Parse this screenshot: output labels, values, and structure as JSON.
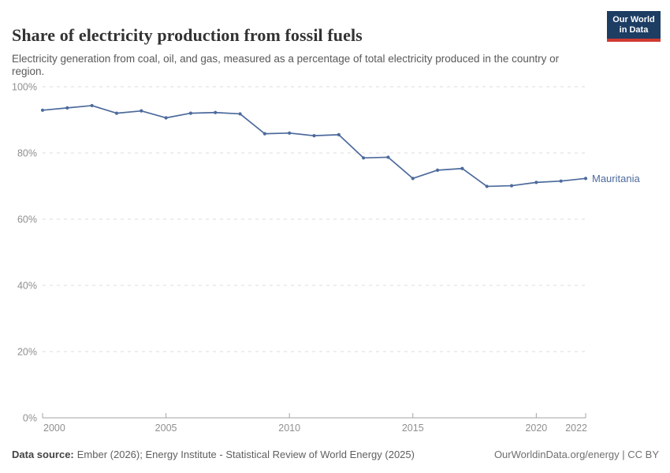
{
  "header": {
    "title": "Share of electricity production from fossil fuels",
    "subtitle": "Electricity generation from coal, oil, and gas, measured as a percentage of total electricity produced in the country or region.",
    "logo": {
      "line1": "Our World",
      "line2": "in Data"
    }
  },
  "chart_data": {
    "type": "line",
    "title": "Share of electricity production from fossil fuels",
    "xlabel": "",
    "ylabel": "",
    "xlim": [
      2000,
      2022
    ],
    "ylim": [
      0,
      100
    ],
    "grid": "horizontal-dashed",
    "legend_position": "end-of-line-label",
    "x": [
      2000,
      2001,
      2002,
      2003,
      2004,
      2005,
      2006,
      2007,
      2008,
      2009,
      2010,
      2011,
      2012,
      2013,
      2014,
      2015,
      2016,
      2017,
      2018,
      2019,
      2020,
      2021,
      2022
    ],
    "series": [
      {
        "name": "Mauritania",
        "color": "#4c6a9c",
        "values": [
          92.9,
          93.6,
          94.3,
          92.0,
          92.7,
          90.6,
          92.0,
          92.2,
          91.8,
          85.8,
          86.0,
          85.2,
          85.5,
          78.5,
          78.7,
          72.3,
          74.8,
          75.3,
          69.9,
          70.1,
          71.1,
          71.5,
          72.3
        ]
      }
    ],
    "x_ticks": [
      {
        "value": 2000,
        "label": "2000"
      },
      {
        "value": 2005,
        "label": "2005"
      },
      {
        "value": 2010,
        "label": "2010"
      },
      {
        "value": 2015,
        "label": "2015"
      },
      {
        "value": 2020,
        "label": "2020"
      },
      {
        "value": 2022,
        "label": "2022"
      }
    ],
    "y_ticks": [
      {
        "value": 0,
        "label": "0%"
      },
      {
        "value": 20,
        "label": "20%"
      },
      {
        "value": 40,
        "label": "40%"
      },
      {
        "value": 60,
        "label": "60%"
      },
      {
        "value": 80,
        "label": "80%"
      },
      {
        "value": 100,
        "label": "100%"
      }
    ]
  },
  "footer": {
    "data_source_label": "Data source:",
    "data_source_text": "Ember (2026); Energy Institute - Statistical Review of World Energy (2025)",
    "attribution": "OurWorldinData.org/energy | CC BY"
  },
  "colors": {
    "series_line": "#4c6a9c",
    "gridline": "#dedede",
    "axis_line": "#a3a3a3",
    "axis_text": "#8f8f8f",
    "title_text": "#333333",
    "subtitle_text": "#595959",
    "logo_navy": "#1d3d63",
    "logo_red": "#cf3a32",
    "background": "#ffffff"
  }
}
